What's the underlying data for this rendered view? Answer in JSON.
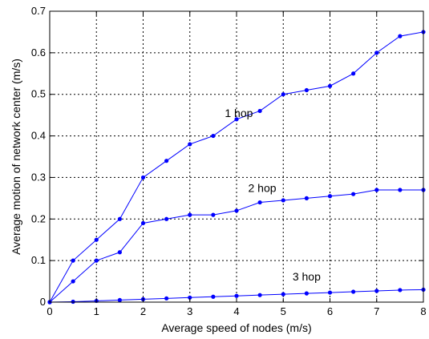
{
  "chart_data": {
    "type": "line",
    "xlabel": "Average speed of nodes (m/s)",
    "ylabel": "Average motion of network center (m/s)",
    "xlim": [
      0,
      8
    ],
    "ylim": [
      0,
      0.7
    ],
    "xticks": [
      0,
      1,
      2,
      3,
      4,
      5,
      6,
      7,
      8
    ],
    "yticks": [
      0,
      0.1,
      0.2,
      0.3,
      0.4,
      0.5,
      0.6,
      0.7
    ],
    "grid": true,
    "line_color": "#0000ff",
    "x": [
      0,
      0.5,
      1,
      1.5,
      2,
      2.5,
      3,
      3.5,
      4,
      4.5,
      5,
      5.5,
      6,
      6.5,
      7,
      7.5,
      8
    ],
    "series": [
      {
        "name": "1 hop",
        "values": [
          0,
          0.1,
          0.15,
          0.2,
          0.3,
          0.34,
          0.38,
          0.4,
          0.44,
          0.46,
          0.5,
          0.51,
          0.52,
          0.55,
          0.6,
          0.64,
          0.65
        ],
        "label_at": [
          4.05,
          0.445
        ]
      },
      {
        "name": "2 hop",
        "values": [
          0,
          0.05,
          0.1,
          0.12,
          0.19,
          0.2,
          0.21,
          0.21,
          0.22,
          0.24,
          0.245,
          0.25,
          0.255,
          0.26,
          0.27,
          0.27,
          0.27
        ],
        "label_at": [
          4.55,
          0.265
        ]
      },
      {
        "name": "3 hop",
        "values": [
          0,
          0.001,
          0.003,
          0.005,
          0.007,
          0.009,
          0.011,
          0.013,
          0.015,
          0.017,
          0.019,
          0.021,
          0.023,
          0.025,
          0.027,
          0.029,
          0.03
        ],
        "label_at": [
          5.5,
          0.052
        ]
      }
    ]
  }
}
